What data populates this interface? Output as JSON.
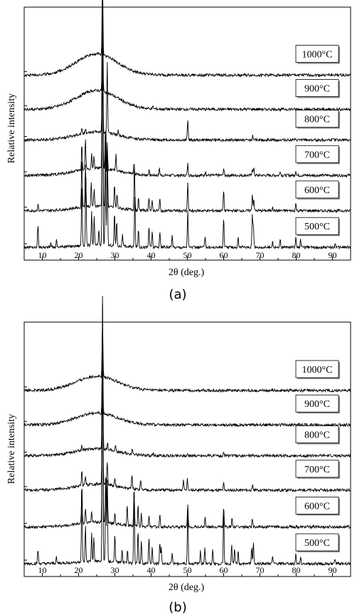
{
  "chart_data": [
    {
      "type": "line",
      "panel_label": "(a)",
      "xlabel": "2θ (deg.)",
      "ylabel": "Relative intensity",
      "xlim": [
        5,
        95
      ],
      "xticks": [
        10,
        20,
        30,
        40,
        50,
        60,
        70,
        80,
        90
      ],
      "grid": false,
      "series": [
        {
          "name": "500°C",
          "baseline": 0.0,
          "amorphous_hump": 0.01,
          "peaks": [
            [
              8.8,
              0.1
            ],
            [
              12.4,
              0.02
            ],
            [
              13.9,
              0.03
            ],
            [
              20.9,
              0.28
            ],
            [
              22.0,
              0.3
            ],
            [
              23.6,
              0.14
            ],
            [
              24.3,
              0.12
            ],
            [
              25.6,
              0.06
            ],
            [
              26.6,
              1.0
            ],
            [
              27.4,
              0.44
            ],
            [
              27.9,
              0.4
            ],
            [
              29.9,
              0.14
            ],
            [
              30.5,
              0.11
            ],
            [
              32.1,
              0.05
            ],
            [
              35.5,
              0.22
            ],
            [
              36.5,
              0.08
            ],
            [
              39.4,
              0.09
            ],
            [
              40.3,
              0.07
            ],
            [
              42.4,
              0.07
            ],
            [
              45.8,
              0.05
            ],
            [
              50.1,
              0.16
            ],
            [
              54.9,
              0.05
            ],
            [
              60.0,
              0.13
            ],
            [
              64.0,
              0.04
            ],
            [
              67.9,
              0.14
            ],
            [
              68.2,
              0.1
            ],
            [
              73.5,
              0.03
            ],
            [
              75.6,
              0.03
            ],
            [
              79.9,
              0.05
            ],
            [
              81.2,
              0.03
            ],
            [
              90.8,
              0.02
            ]
          ]
        },
        {
          "name": "600°C",
          "baseline": 0.155,
          "amorphous_hump": 0.02,
          "peaks": [
            [
              8.8,
              0.03
            ],
            [
              20.9,
              0.22
            ],
            [
              21.9,
              0.18
            ],
            [
              23.5,
              0.1
            ],
            [
              24.3,
              0.07
            ],
            [
              26.6,
              0.92
            ],
            [
              27.5,
              0.36
            ],
            [
              27.9,
              0.28
            ],
            [
              29.9,
              0.1
            ],
            [
              30.6,
              0.06
            ],
            [
              35.4,
              0.19
            ],
            [
              36.5,
              0.05
            ],
            [
              39.4,
              0.06
            ],
            [
              40.3,
              0.04
            ],
            [
              42.4,
              0.05
            ],
            [
              50.1,
              0.12
            ],
            [
              60.0,
              0.09
            ],
            [
              67.9,
              0.07
            ],
            [
              68.3,
              0.05
            ],
            [
              73.5,
              0.02
            ],
            [
              79.9,
              0.03
            ]
          ]
        },
        {
          "name": "700°C",
          "baseline": 0.305,
          "amorphous_hump": 0.03,
          "peaks": [
            [
              20.9,
              0.11
            ],
            [
              21.9,
              0.13
            ],
            [
              23.6,
              0.06
            ],
            [
              24.2,
              0.05
            ],
            [
              26.6,
              0.8
            ],
            [
              27.4,
              0.17
            ],
            [
              27.9,
              0.1
            ],
            [
              30.3,
              0.07
            ],
            [
              35.3,
              0.04
            ],
            [
              39.4,
              0.02
            ],
            [
              42.3,
              0.03
            ],
            [
              50.1,
              0.05
            ],
            [
              55.0,
              0.02
            ],
            [
              60.0,
              0.03
            ],
            [
              67.9,
              0.03
            ],
            [
              68.3,
              0.03
            ],
            [
              75.6,
              0.02
            ],
            [
              79.9,
              0.02
            ]
          ]
        },
        {
          "name": "800°C",
          "baseline": 0.455,
          "amorphous_hump": 0.035,
          "peaks": [
            [
              20.9,
              0.02
            ],
            [
              21.9,
              0.02
            ],
            [
              26.6,
              0.65
            ],
            [
              27.9,
              0.3
            ],
            [
              30.9,
              0.02
            ],
            [
              50.1,
              0.09
            ],
            [
              68.0,
              0.02
            ]
          ]
        },
        {
          "name": "900°C",
          "baseline": 0.585,
          "amorphous_hump": 0.08,
          "peaks": [
            [
              26.6,
              0.42
            ],
            [
              40.5,
              0.01
            ]
          ]
        },
        {
          "name": "1000°C",
          "baseline": 0.73,
          "amorphous_hump": 0.09,
          "peaks": [
            [
              26.6,
              0.35
            ]
          ]
        }
      ]
    },
    {
      "type": "line",
      "panel_label": "(b)",
      "xlabel": "2θ (deg.)",
      "ylabel": "Relative intensity",
      "xlim": [
        5,
        95
      ],
      "xticks": [
        10,
        20,
        30,
        40,
        50,
        60,
        70,
        80,
        90
      ],
      "grid": false,
      "series": [
        {
          "name": "500°C",
          "baseline": 0.0,
          "amorphous_hump": 0.01,
          "peaks": [
            [
              8.8,
              0.06
            ],
            [
              13.9,
              0.03
            ],
            [
              20.9,
              0.34
            ],
            [
              21.9,
              0.15
            ],
            [
              23.6,
              0.12
            ],
            [
              24.2,
              0.1
            ],
            [
              26.6,
              1.0
            ],
            [
              27.5,
              0.36
            ],
            [
              27.9,
              0.34
            ],
            [
              30.0,
              0.12
            ],
            [
              32.0,
              0.05
            ],
            [
              33.5,
              0.06
            ],
            [
              35.3,
              0.3
            ],
            [
              36.4,
              0.14
            ],
            [
              37.3,
              0.1
            ],
            [
              39.4,
              0.11
            ],
            [
              40.3,
              0.07
            ],
            [
              42.4,
              0.09
            ],
            [
              42.8,
              0.07
            ],
            [
              45.8,
              0.05
            ],
            [
              50.1,
              0.24
            ],
            [
              53.6,
              0.06
            ],
            [
              54.8,
              0.07
            ],
            [
              57.0,
              0.06
            ],
            [
              60.0,
              0.22
            ],
            [
              62.2,
              0.08
            ],
            [
              63.0,
              0.06
            ],
            [
              64.0,
              0.05
            ],
            [
              67.7,
              0.07
            ],
            [
              68.2,
              0.09
            ],
            [
              73.5,
              0.03
            ],
            [
              79.9,
              0.04
            ],
            [
              81.2,
              0.03
            ],
            [
              90.7,
              0.02
            ]
          ]
        },
        {
          "name": "600°C",
          "baseline": 0.155,
          "amorphous_hump": 0.02,
          "peaks": [
            [
              20.9,
              0.16
            ],
            [
              21.9,
              0.06
            ],
            [
              23.6,
              0.05
            ],
            [
              26.6,
              0.93
            ],
            [
              27.5,
              0.22
            ],
            [
              27.9,
              0.18
            ],
            [
              30.0,
              0.05
            ],
            [
              33.4,
              0.08
            ],
            [
              35.3,
              0.16
            ],
            [
              36.4,
              0.09
            ],
            [
              37.3,
              0.06
            ],
            [
              39.4,
              0.05
            ],
            [
              42.4,
              0.05
            ],
            [
              50.1,
              0.09
            ],
            [
              54.9,
              0.04
            ],
            [
              60.0,
              0.08
            ],
            [
              62.3,
              0.04
            ],
            [
              67.9,
              0.04
            ]
          ]
        },
        {
          "name": "700°C",
          "baseline": 0.31,
          "amorphous_hump": 0.025,
          "peaks": [
            [
              20.9,
              0.06
            ],
            [
              21.9,
              0.04
            ],
            [
              26.6,
              0.8
            ],
            [
              27.9,
              0.1
            ],
            [
              30.0,
              0.03
            ],
            [
              34.7,
              0.06
            ],
            [
              37.1,
              0.04
            ],
            [
              48.9,
              0.04
            ],
            [
              50.0,
              0.05
            ],
            [
              60.0,
              0.03
            ],
            [
              68.0,
              0.02
            ]
          ]
        },
        {
          "name": "800°C",
          "baseline": 0.455,
          "amorphous_hump": 0.03,
          "peaks": [
            [
              20.9,
              0.02
            ],
            [
              26.6,
              0.6
            ],
            [
              28.0,
              0.03
            ],
            [
              30.2,
              0.02
            ],
            [
              34.8,
              0.02
            ],
            [
              40.6,
              0.01
            ],
            [
              50.1,
              0.01
            ],
            [
              60.0,
              0.01
            ]
          ]
        },
        {
          "name": "900°C",
          "baseline": 0.585,
          "amorphous_hump": 0.05,
          "peaks": [
            [
              26.6,
              0.3
            ]
          ]
        },
        {
          "name": "1000°C",
          "baseline": 0.73,
          "amorphous_hump": 0.06,
          "peaks": [
            [
              26.6,
              0.25
            ],
            [
              30.3,
              0.01
            ]
          ]
        }
      ]
    }
  ]
}
